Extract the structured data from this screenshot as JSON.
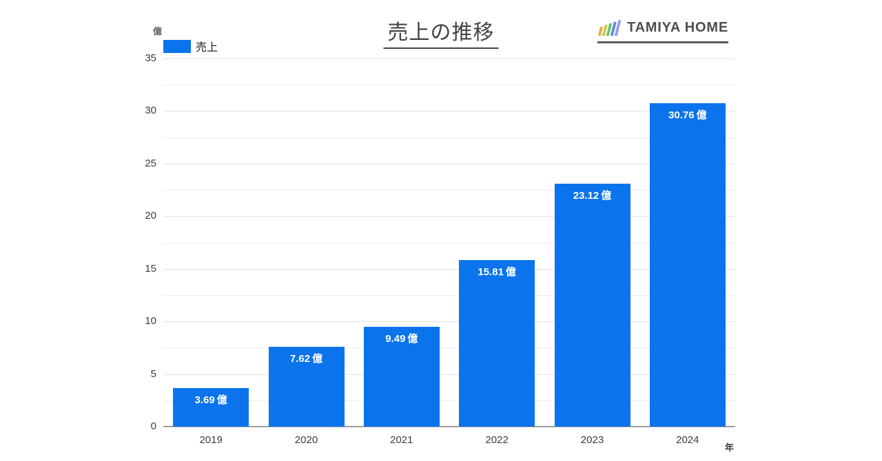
{
  "header": {
    "title": "売上の推移",
    "logo": {
      "text": "TAMIYA HOME",
      "icon": "bar-chart-logo-icon",
      "icon_bar_colors": [
        "#f0a93c",
        "#c3cd49",
        "#6dbf68",
        "#5b8fdb",
        "#9e99e3"
      ]
    }
  },
  "legend": {
    "items": [
      {
        "label": "売上",
        "color": "#0b74ec"
      }
    ]
  },
  "chart_data": {
    "type": "bar",
    "title": "売上の推移",
    "categories": [
      "2019",
      "2020",
      "2021",
      "2022",
      "2023",
      "2024"
    ],
    "series": [
      {
        "name": "売上",
        "color": "#0b74ec",
        "values": [
          3.69,
          7.62,
          9.49,
          15.81,
          23.12,
          30.76
        ]
      }
    ],
    "bar_label_values": [
      "3.69",
      "7.62",
      "9.49",
      "15.81",
      "23.12",
      "30.76"
    ],
    "bar_label_unit": "億",
    "xlabel": "年",
    "ylabel": "億",
    "ylim": [
      0,
      35
    ],
    "yticks": [
      0,
      5,
      10,
      15,
      20,
      25,
      30,
      35
    ],
    "minor_grid_step": 2.5,
    "grid": true,
    "legend_position": "top-left"
  },
  "colors": {
    "bar": "#0b74ec",
    "bar_label_text": "#ffffff",
    "grid_major": "#e3e3e3",
    "grid_minor": "#ededed",
    "baseline": "#9e9e9e",
    "tick_text": "#3c3c3c",
    "title_text": "#424242",
    "background": "#ffffff"
  }
}
